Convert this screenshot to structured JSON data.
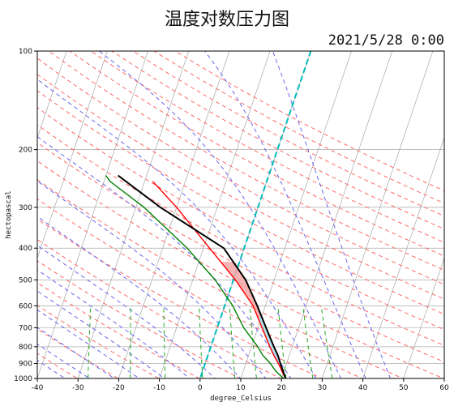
{
  "title": "温度对数压力图",
  "datetime": "2021/5/28 0:00",
  "chart_data": {
    "type": "line",
    "xlabel": "degree_Celsius",
    "ylabel": "hectopascal",
    "xlim": [
      -40,
      60
    ],
    "ylim": [
      1000,
      100
    ],
    "log_y": true,
    "skew": true,
    "grid": true,
    "x_ticks": [
      -40,
      -30,
      -20,
      -10,
      0,
      10,
      20,
      30,
      40,
      50,
      60
    ],
    "y_ticks": [
      1000,
      900,
      800,
      700,
      600,
      500,
      400,
      300,
      200,
      100
    ],
    "series": [
      {
        "color": "#ff0000",
        "points": [
          [
            1000,
            21.0
          ],
          [
            950,
            19.5
          ],
          [
            900,
            18.0
          ],
          [
            850,
            16.2
          ],
          [
            800,
            14.5
          ],
          [
            700,
            11.0
          ],
          [
            600,
            7.0
          ],
          [
            500,
            0.5
          ],
          [
            400,
            -8.5
          ],
          [
            300,
            -20.0
          ],
          [
            250,
            -28.0
          ]
        ]
      },
      {
        "color": "#008000",
        "points": [
          [
            1000,
            20.5
          ],
          [
            950,
            18.0
          ],
          [
            900,
            16.0
          ],
          [
            850,
            13.5
          ],
          [
            800,
            11.5
          ],
          [
            700,
            6.5
          ],
          [
            600,
            2.0
          ],
          [
            500,
            -4.5
          ],
          [
            400,
            -14.0
          ],
          [
            300,
            -28.0
          ],
          [
            250,
            -38.5
          ],
          [
            240,
            -40.0
          ]
        ]
      },
      {
        "color": "#000000",
        "points": [
          [
            1000,
            21.0
          ],
          [
            950,
            19.8
          ],
          [
            900,
            18.5
          ],
          [
            850,
            17.2
          ],
          [
            800,
            15.5
          ],
          [
            700,
            12.0
          ],
          [
            600,
            8.0
          ],
          [
            500,
            3.0
          ],
          [
            400,
            -5.0
          ],
          [
            300,
            -24.0
          ],
          [
            240,
            -37.0
          ]
        ]
      }
    ],
    "reference_lines": {
      "dry_adiabats_color": "#ff6666",
      "moist_adiabats_color": "#6666ee",
      "mixing_ratio_color": "#22aa22",
      "isotherm_color": "#999999",
      "zero_isotherm_color": "#00bbbb"
    },
    "shading": {
      "cape_color": "#f4a6a6",
      "cin_color": "#a6dcea"
    }
  }
}
